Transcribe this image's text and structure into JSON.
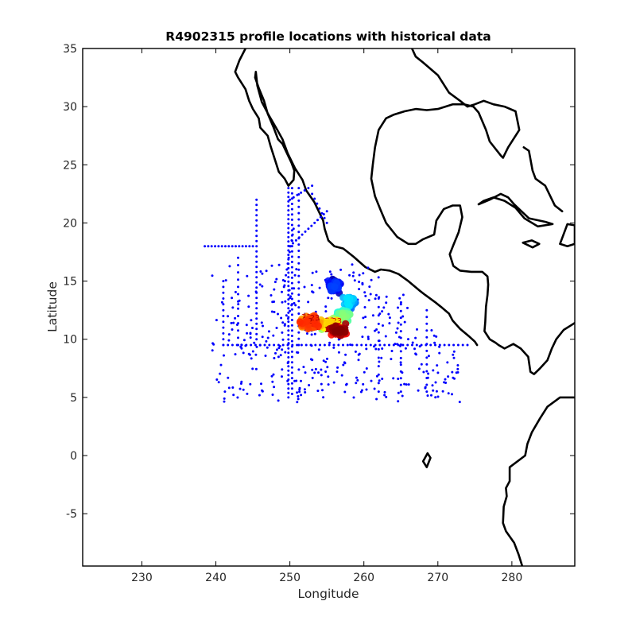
{
  "chart_data": {
    "type": "scatter",
    "title": "R4902315 profile locations with historical data",
    "xlabel": "Longitude",
    "ylabel": "Latitude",
    "xlim": [
      222,
      288.5
    ],
    "ylim": [
      -9.5,
      35
    ],
    "xticks": [
      230,
      240,
      250,
      260,
      270,
      280
    ],
    "yticks": [
      -5,
      0,
      5,
      10,
      15,
      20,
      25,
      30,
      35
    ],
    "grid": false,
    "legend": "none",
    "series": [
      {
        "role": "historical",
        "color": "#0000ff",
        "marker": "dot",
        "lines": [
          {
            "from": [
              238.5,
              18
            ],
            "to": [
              245,
              18
            ],
            "step": 0.45
          },
          {
            "from": [
              245.5,
              22
            ],
            "to": [
              245.5,
              10
            ],
            "step": 0.45
          },
          {
            "from": [
              249.8,
              23
            ],
            "to": [
              249.8,
              5
            ],
            "step": 0.38
          },
          {
            "from": [
              250.3,
              23
            ],
            "to": [
              250.3,
              5.3
            ],
            "step": 0.45
          },
          {
            "from": [
              251.2,
              23
            ],
            "to": [
              251.2,
              9.5
            ],
            "step": 0.55
          },
          {
            "from": [
              250,
              22
            ],
            "to": [
              253,
              23.2
            ],
            "step": 0.5
          },
          {
            "from": [
              250,
              18
            ],
            "to": [
              255,
              21
            ],
            "step": 0.5
          },
          {
            "from": [
              250.5,
              19.5
            ],
            "to": [
              249.2,
              14.5
            ],
            "step": 0.5
          },
          {
            "from": [
              241,
              9.5
            ],
            "to": [
              274,
              9.5
            ],
            "step": 0.62
          },
          {
            "from": [
              241,
              15
            ],
            "to": [
              241,
              9.5
            ],
            "step": 0.5
          },
          {
            "from": [
              243,
              17
            ],
            "to": [
              243,
              9.5
            ],
            "step": 0.65
          },
          {
            "from": [
              253,
              22.5
            ],
            "to": [
              255,
              20
            ],
            "step": 0.5
          },
          {
            "from": [
              268.5,
              12.5
            ],
            "to": [
              268.5,
              5.5
            ],
            "step": 0.6
          },
          {
            "from": [
              265,
              13
            ],
            "to": [
              265,
              5.5
            ],
            "step": 0.6
          },
          {
            "from": [
              262,
              13.5
            ],
            "to": [
              262,
              5.5
            ],
            "step": 0.7
          }
        ],
        "scatter_region": {
          "lon": [
            239.5,
            273
          ],
          "lat": [
            4.6,
            16.5
          ],
          "count": 470
        }
      },
      {
        "role": "argo-profiles",
        "colormap": "jet",
        "label_prefix": "23",
        "clusters": [
          {
            "center": [
              256,
              14.6
            ],
            "spread": [
              1.1,
              0.9
            ],
            "count": 70
          },
          {
            "center": [
              258.2,
              13.2
            ],
            "spread": [
              1.1,
              0.8
            ],
            "count": 55
          },
          {
            "center": [
              257.2,
              12.0
            ],
            "spread": [
              1.2,
              0.8
            ],
            "count": 40
          },
          {
            "center": [
              255.5,
              11.3
            ],
            "spread": [
              1.8,
              0.6
            ],
            "count": 60
          },
          {
            "center": [
              252.8,
              11.4
            ],
            "spread": [
              1.8,
              0.7
            ],
            "count": 110
          },
          {
            "center": [
              256.5,
              10.8
            ],
            "spread": [
              1.6,
              0.6
            ],
            "count": 80
          }
        ]
      }
    ],
    "coastline": {
      "color": "#000000",
      "mainland_west": [
        [
          266.5,
          35
        ],
        [
          267,
          34.3
        ],
        [
          268,
          33.8
        ],
        [
          270,
          32.7
        ],
        [
          271.5,
          31.2
        ],
        [
          273,
          30.5
        ],
        [
          274,
          30
        ],
        [
          275,
          30.2
        ],
        [
          276.2,
          30.5
        ],
        [
          277.5,
          30.2
        ],
        [
          279,
          30
        ],
        [
          280.5,
          29.6
        ],
        [
          281,
          28
        ],
        [
          279.5,
          26.5
        ],
        [
          278.8,
          25.6
        ],
        [
          278.5,
          25.8
        ],
        [
          277,
          27
        ],
        [
          276.5,
          28
        ],
        [
          275.5,
          29.5
        ],
        [
          274.8,
          30
        ],
        [
          273.5,
          30.2
        ],
        [
          272,
          30.2
        ],
        [
          270,
          29.8
        ],
        [
          268.5,
          29.7
        ],
        [
          267,
          29.8
        ],
        [
          265.5,
          29.6
        ],
        [
          264,
          29.3
        ],
        [
          263,
          29
        ],
        [
          262,
          28
        ],
        [
          261.5,
          26.5
        ],
        [
          261.2,
          25
        ],
        [
          261,
          23.8
        ],
        [
          261.5,
          22.3
        ],
        [
          262.2,
          21.2
        ],
        [
          263,
          20
        ],
        [
          264.5,
          18.8
        ],
        [
          266,
          18.2
        ],
        [
          267,
          18.2
        ],
        [
          268,
          18.6
        ],
        [
          269.5,
          19
        ],
        [
          269.8,
          20.2
        ],
        [
          270.8,
          21.2
        ],
        [
          272,
          21.5
        ],
        [
          273,
          21.5
        ],
        [
          273.3,
          20.5
        ],
        [
          272.8,
          19.2
        ],
        [
          272.1,
          18.1
        ],
        [
          271.6,
          17.3
        ],
        [
          272.1,
          16.3
        ],
        [
          273,
          15.9
        ],
        [
          274.5,
          15.8
        ],
        [
          276,
          15.8
        ],
        [
          276.7,
          15.4
        ],
        [
          276.8,
          14.7
        ],
        [
          276.7,
          13.8
        ],
        [
          276.5,
          12.8
        ],
        [
          276.4,
          11.5
        ],
        [
          276.3,
          10.7
        ],
        [
          277,
          10
        ],
        [
          277.8,
          9.7
        ],
        [
          278.2,
          9.5
        ],
        [
          279,
          9.2
        ],
        [
          280.2,
          9.6
        ],
        [
          281.2,
          9.2
        ],
        [
          282.2,
          8.5
        ],
        [
          282.5,
          7.2
        ],
        [
          283,
          7
        ],
        [
          283.8,
          7.5
        ],
        [
          284.8,
          8.2
        ],
        [
          285.4,
          9.2
        ],
        [
          286,
          10
        ],
        [
          287,
          10.8
        ],
        [
          288,
          11.2
        ],
        [
          288.5,
          11.4
        ]
      ],
      "mainland_south": [
        [
          288.5,
          5
        ],
        [
          286.5,
          5
        ],
        [
          284.8,
          4.2
        ],
        [
          283.8,
          3.2
        ],
        [
          282.7,
          2
        ],
        [
          282.1,
          1
        ],
        [
          281.8,
          0
        ],
        [
          279.7,
          -1
        ],
        [
          279.7,
          -2.2
        ],
        [
          279.2,
          -2.8
        ],
        [
          279.3,
          -3.5
        ],
        [
          278.9,
          -4.4
        ],
        [
          278.8,
          -5.8
        ],
        [
          279.2,
          -6.5
        ],
        [
          280.3,
          -7.5
        ],
        [
          280.9,
          -8.5
        ],
        [
          281.4,
          -9.5
        ]
      ],
      "pacific_coast": [
        [
          244,
          35
        ],
        [
          243.2,
          34
        ],
        [
          242.6,
          33
        ],
        [
          243,
          32.5
        ],
        [
          244,
          31.5
        ],
        [
          244.5,
          30.5
        ],
        [
          245,
          29.8
        ],
        [
          245.8,
          29
        ],
        [
          246,
          28.2
        ],
        [
          247,
          27.5
        ],
        [
          247.4,
          26.6
        ],
        [
          248.2,
          25
        ],
        [
          248.5,
          24.4
        ],
        [
          249.3,
          23.8
        ],
        [
          249.8,
          23.2
        ],
        [
          250.5,
          23.7
        ],
        [
          250.6,
          24.5
        ],
        [
          250.2,
          25.2
        ],
        [
          249.6,
          26
        ],
        [
          249,
          26.8
        ],
        [
          248.4,
          27.2
        ],
        [
          247.8,
          28.2
        ],
        [
          247,
          29.4
        ],
        [
          246.5,
          30.5
        ],
        [
          245.8,
          31.6
        ],
        [
          245.3,
          32.5
        ],
        [
          245.4,
          33
        ],
        [
          245.6,
          31.8
        ],
        [
          246.2,
          30.4
        ],
        [
          247.2,
          29.2
        ],
        [
          248.3,
          28
        ],
        [
          249,
          27.2
        ],
        [
          249.7,
          26
        ],
        [
          250.7,
          24.7
        ],
        [
          251.7,
          23.7
        ],
        [
          252.2,
          22.8
        ],
        [
          253.3,
          21.8
        ],
        [
          254.5,
          20.2
        ],
        [
          254.7,
          19.5
        ],
        [
          255.2,
          18.5
        ],
        [
          256,
          18
        ],
        [
          257.2,
          17.8
        ],
        [
          258.6,
          17.1
        ],
        [
          260.2,
          16.2
        ],
        [
          261.5,
          15.8
        ],
        [
          262.3,
          16
        ],
        [
          263.5,
          15.9
        ],
        [
          264.7,
          15.6
        ],
        [
          266,
          15
        ],
        [
          267.5,
          14.2
        ],
        [
          268.3,
          13.8
        ],
        [
          269.6,
          13.2
        ],
        [
          270.4,
          12.8
        ],
        [
          271.5,
          12.2
        ],
        [
          272,
          11.6
        ],
        [
          273,
          10.9
        ],
        [
          274.3,
          10.2
        ],
        [
          275,
          9.8
        ],
        [
          275.3,
          9.5
        ]
      ],
      "cuba": [
        [
          275.5,
          21.6
        ],
        [
          277,
          22
        ],
        [
          278.5,
          22.5
        ],
        [
          279.5,
          22.2
        ],
        [
          280.3,
          21.6
        ],
        [
          281.3,
          21
        ],
        [
          282.3,
          20.4
        ],
        [
          284.5,
          20.1
        ],
        [
          285.5,
          19.9
        ],
        [
          283.5,
          19.7
        ],
        [
          281.7,
          20.4
        ],
        [
          280.5,
          21.3
        ],
        [
          279,
          21.9
        ],
        [
          277.5,
          22.2
        ],
        [
          276.2,
          21.9
        ],
        [
          275.5,
          21.6
        ]
      ],
      "jamaica": [
        [
          281.5,
          18.3
        ],
        [
          282.7,
          18.5
        ],
        [
          283.7,
          18.2
        ],
        [
          282.8,
          17.9
        ],
        [
          281.5,
          18.3
        ]
      ],
      "hispaniola": [
        [
          286.5,
          18.2
        ],
        [
          287.5,
          19.9
        ],
        [
          288.5,
          19.8
        ],
        [
          288.5,
          18.2
        ],
        [
          287.5,
          18
        ],
        [
          286.5,
          18.2
        ]
      ],
      "bahamas": [
        [
          281.6,
          26.5
        ],
        [
          282.3,
          26.2
        ],
        [
          282.8,
          24.5
        ],
        [
          283.2,
          23.8
        ],
        [
          284.5,
          23.2
        ],
        [
          285.8,
          21.5
        ],
        [
          286.8,
          21
        ]
      ],
      "islands": [
        [
          268,
          -0.5
        ],
        [
          268.6,
          0.2
        ],
        [
          269,
          -0.2
        ],
        [
          268.5,
          -1
        ],
        [
          268,
          -0.5
        ]
      ]
    }
  }
}
